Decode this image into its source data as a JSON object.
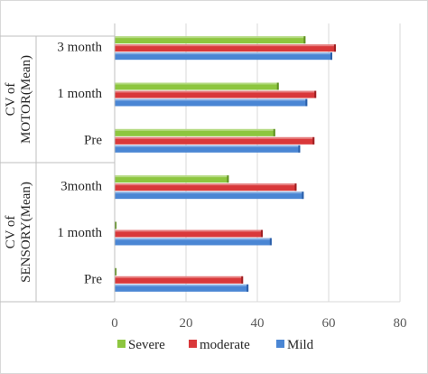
{
  "chart_data": {
    "type": "bar",
    "orientation": "horizontal",
    "groups": [
      {
        "label": "CV of MOTOR(Mean)",
        "label_lines": [
          "CV of",
          "MOTOR(Mean)"
        ],
        "categories": [
          "3 month",
          "1 month",
          "Pre"
        ]
      },
      {
        "label": "CV of SENSORY(Mean)",
        "label_lines": [
          "CV of",
          "SENSORY(Mean)"
        ],
        "categories": [
          "3month",
          "1 month",
          "Pre"
        ]
      }
    ],
    "categories": [
      "3 month",
      "1 month",
      "Pre",
      "3month",
      "1 month",
      "Pre"
    ],
    "series": [
      {
        "name": "Severe",
        "color": "#8dc63f",
        "values": [
          53.5,
          46,
          45,
          32,
          0.5,
          0.5
        ]
      },
      {
        "name": "moderate",
        "color": "#d9383a",
        "values": [
          62,
          56.5,
          56,
          51,
          41.5,
          36
        ]
      },
      {
        "name": "Mild",
        "color": "#4a86d4",
        "values": [
          61,
          54,
          52,
          53,
          44,
          37.5
        ]
      }
    ],
    "xlim": [
      0,
      80
    ],
    "xticks": [
      "0",
      "20",
      "40",
      "60",
      "80"
    ],
    "grid": true,
    "legend_position": "bottom"
  }
}
